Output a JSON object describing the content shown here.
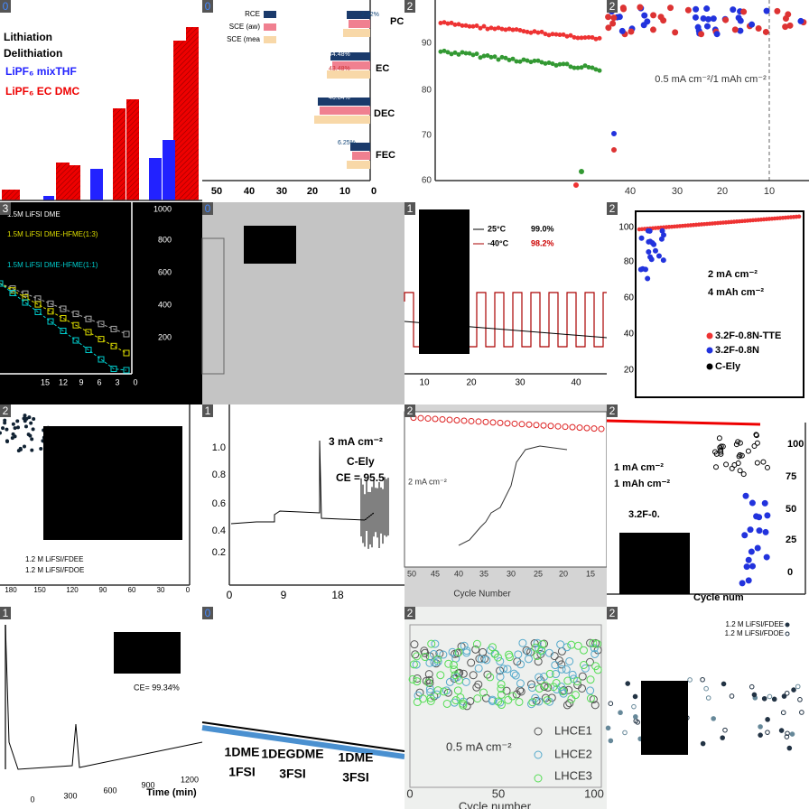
{
  "tiles": [
    {
      "badge": "0",
      "texts": [
        "Lithiation",
        "Delithiation",
        "LiPF₆ mixTHF",
        "LiPF₆ EC DMC"
      ]
    },
    {
      "badge": "0",
      "texts": [
        "PC",
        "EC",
        "DEC",
        "FEC",
        "RCE",
        "SCE (aw)",
        "SCE (mea",
        "2.42%",
        "44.48%",
        "43.48%",
        "46.84%",
        "6.25%",
        "50",
        "40",
        "30",
        "20",
        "10",
        "0"
      ]
    },
    {
      "badge": "2",
      "texts": [
        "90",
        "80",
        "70",
        "60"
      ]
    },
    {
      "badge": "2",
      "texts": [
        "0.5 mA cm⁻²/1 mAh cm⁻²",
        "40",
        "30",
        "20",
        "10"
      ]
    },
    {
      "badge": "3",
      "texts": [
        "1.5M LiFSI DME",
        "1.5M LiFSI DME-HFME(1:3)",
        "1.5M LiFSI DME-HFME(1:1)",
        "1000",
        "800",
        "600",
        "400",
        "200",
        "0",
        "3",
        "6",
        "9",
        "12",
        "15"
      ]
    },
    {
      "badge": "0",
      "texts": []
    },
    {
      "badge": "1",
      "texts": [
        "25°C",
        "99.0%",
        "-40°C",
        "98.2%",
        "10",
        "20",
        "30",
        "40"
      ]
    },
    {
      "badge": "2",
      "texts": [
        "2 mA cm⁻²",
        "4 mAh cm⁻²",
        "3.2F-0.8N-TTE",
        "3.2F-0.8N",
        "C-Ely",
        "100",
        "80",
        "60",
        "40",
        "20"
      ]
    },
    {
      "badge": "2",
      "texts": [
        "1.2 M LiFSI/FDEE",
        "1.2 M LiFSI/FDOE",
        "180",
        "150",
        "120",
        "90",
        "60",
        "30",
        "0"
      ]
    },
    {
      "badge": "1",
      "texts": [
        "3 mA cm⁻²",
        "C-Ely",
        "CE = 95.5",
        "1.0",
        "0.8",
        "0.6",
        "0.4",
        "0.2",
        "0",
        "9",
        "18"
      ]
    },
    {
      "badge": "2",
      "texts": [
        "2 mA cm⁻²",
        "Cycle Number",
        "50",
        "45",
        "40",
        "35",
        "30",
        "25",
        "20",
        "15"
      ]
    },
    {
      "badge": "2",
      "texts": [
        "1 mA cm⁻²",
        "1 mAh cm⁻²",
        "3.2F-0.",
        "100",
        "75",
        "50",
        "25",
        "0",
        "Cycle num"
      ]
    },
    {
      "badge": "1",
      "texts": [
        "CE= 99.34%",
        "0",
        "300",
        "600",
        "900",
        "1200",
        "Time (min)"
      ]
    },
    {
      "badge": "0",
      "texts": [
        "1DME",
        "1FSI",
        "1DEGDME",
        "3FSI",
        "1DME",
        "3FSI"
      ]
    },
    {
      "badge": "2",
      "texts": [
        "LHCE1",
        "LHCE2",
        "LHCE3",
        "0.5 mA cm⁻²",
        "0",
        "50",
        "100",
        "Cycle number"
      ]
    },
    {
      "badge": "2",
      "texts": [
        "1.2 M LiFSI/FDEE",
        "1.2 M LiFSI/FDOE"
      ]
    }
  ]
}
